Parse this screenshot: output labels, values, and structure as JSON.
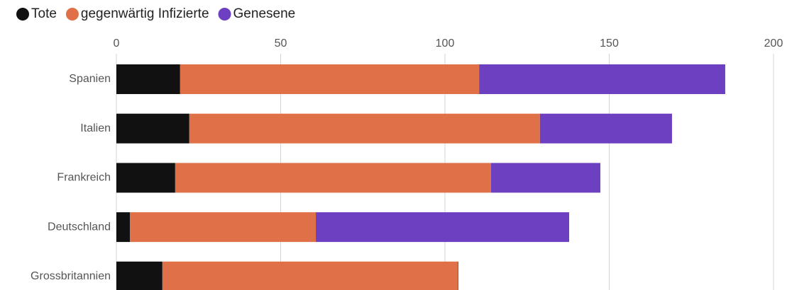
{
  "chart_data": {
    "type": "bar",
    "orientation": "horizontal",
    "stacked": true,
    "categories": [
      "Spanien",
      "Italien",
      "Frankreich",
      "Deutschland",
      "Grossbritannien"
    ],
    "series": [
      {
        "name": "Tote",
        "color": "#111111",
        "values": [
          19.4,
          22.2,
          17.9,
          4.1,
          14.0
        ]
      },
      {
        "name": "gegenwärtig Infizierte",
        "color": "#e07048",
        "values": [
          91.0,
          106.7,
          96.1,
          56.6,
          89.9
        ]
      },
      {
        "name": "Genesene",
        "color": "#6c40c0",
        "values": [
          74.9,
          40.2,
          33.3,
          77.1,
          0.2
        ]
      }
    ],
    "xlim": [
      0,
      200
    ],
    "xticks": [
      0,
      50,
      100,
      150,
      200
    ],
    "grid": true,
    "legend": "top"
  }
}
